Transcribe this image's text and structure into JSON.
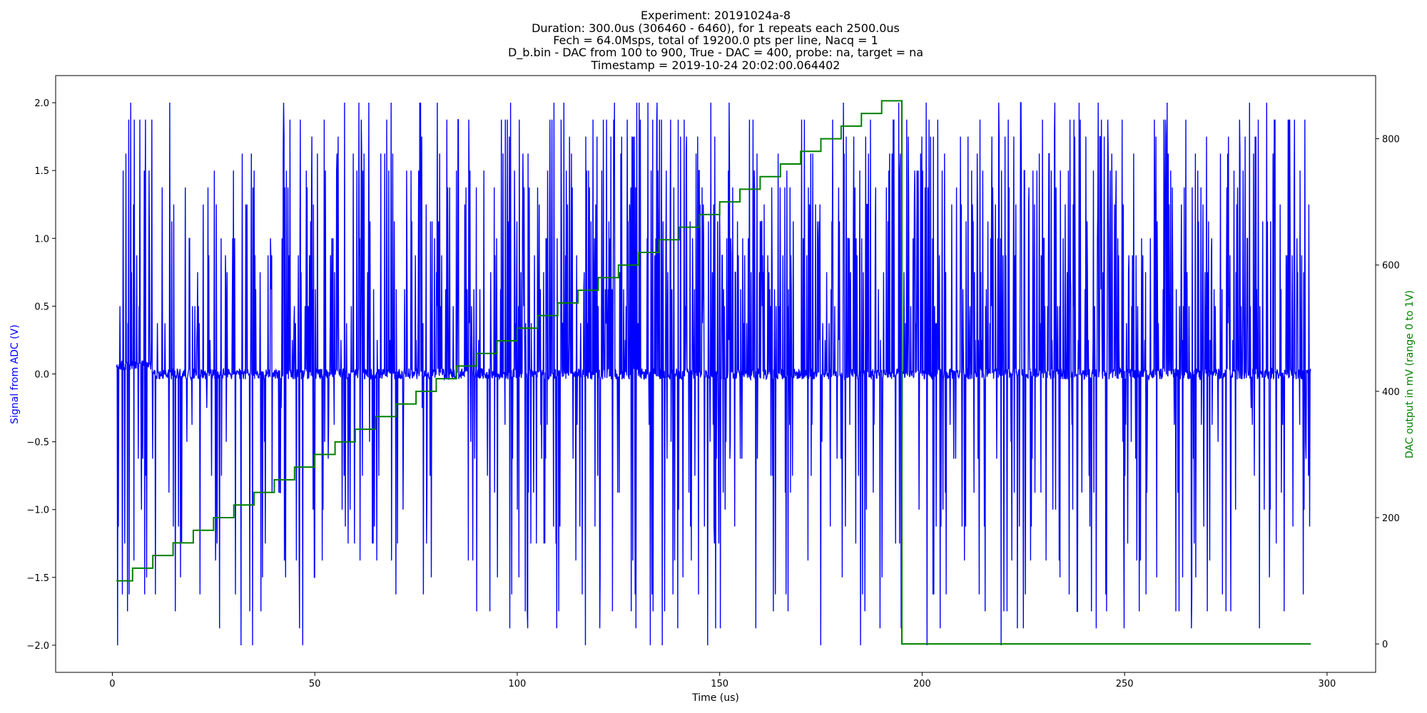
{
  "chart_data": {
    "type": "line",
    "title_lines": [
      "Experiment: 20191024a-8",
      "Duration: 300.0us (306460 - 6460), for 1 repeats each 2500.0us",
      "Fech = 64.0Msps, total of 19200.0 pts per line, Nacq = 1",
      "D_b.bin - DAC from 100 to 900, True - DAC = 400, probe: na, target = na",
      "Timestamp = 2019-10-24 20:02:00.064402"
    ],
    "xlabel": "Time (us)",
    "ylabel_left": "Signal from ADC (V)",
    "ylabel_right": "DAC output in mV (range 0 to 1V)",
    "xlim": [
      -14,
      312
    ],
    "ylim_left": [
      -2.2,
      2.2
    ],
    "ylim_right": [
      -45,
      900
    ],
    "x_ticks": [
      "0",
      "50",
      "100",
      "150",
      "200",
      "250",
      "300"
    ],
    "y_left_ticks": [
      "2.0",
      "1.5",
      "1.0",
      "0.5",
      "0.0",
      "−0.5",
      "−1.0",
      "−1.5",
      "−2.0"
    ],
    "y_right_ticks": [
      "800",
      "600",
      "400",
      "200",
      "0"
    ],
    "grid": false,
    "series": [
      {
        "axis": "left",
        "color": "#0000ff",
        "kind": "noisy ADC signal, baseline ~0 V, spikes between -2.0 and 2.0 V",
        "x_range": [
          1,
          296
        ],
        "baseline": 0.0,
        "values_range": [
          -2.0,
          2.0
        ]
      },
      {
        "axis": "right",
        "color": "#008000",
        "kind": "step",
        "x": [
          1,
          5,
          10,
          15,
          20,
          25,
          30,
          35,
          40,
          45,
          50,
          55,
          60,
          65,
          70,
          75,
          80,
          85,
          90,
          95,
          100,
          105,
          110,
          115,
          120,
          125,
          130,
          135,
          140,
          145,
          150,
          155,
          160,
          165,
          170,
          175,
          180,
          185,
          190,
          195,
          205,
          296
        ],
        "y": [
          100,
          120,
          140,
          160,
          180,
          200,
          220,
          240,
          260,
          280,
          300,
          320,
          340,
          360,
          380,
          400,
          420,
          440,
          460,
          480,
          500,
          520,
          540,
          560,
          580,
          600,
          620,
          640,
          660,
          680,
          700,
          720,
          740,
          760,
          780,
          800,
          820,
          840,
          860,
          0,
          0,
          0
        ]
      }
    ]
  },
  "colors": {
    "signal": "#0000ff",
    "dac": "#008000",
    "axis": "#000000"
  }
}
